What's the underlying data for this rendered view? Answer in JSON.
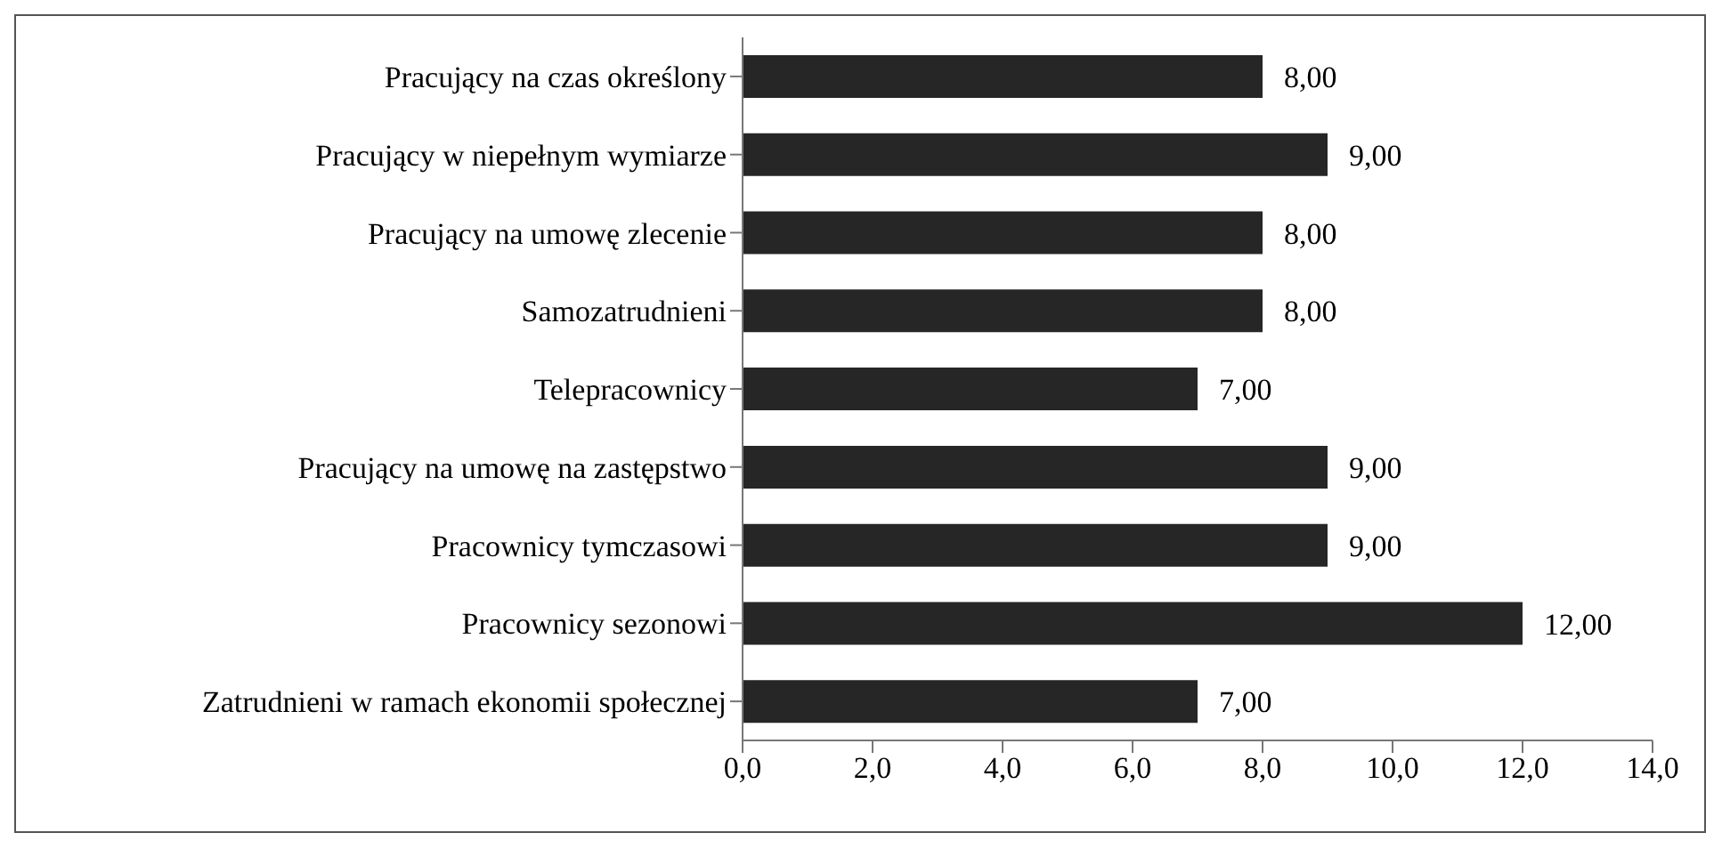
{
  "chart_data": {
    "type": "bar",
    "orientation": "horizontal",
    "categories": [
      "Pracujący na czas określony",
      "Pracujący w niepełnym wymiarze",
      "Pracujący na umowę zlecenie",
      "Samozatrudnieni",
      "Telepracownicy",
      "Pracujący na umowę na zastępstwo",
      "Pracownicy tymczasowi",
      "Pracownicy sezonowi",
      "Zatrudnieni w ramach ekonomii społecznej"
    ],
    "values": [
      8,
      9,
      8,
      8,
      7,
      9,
      9,
      12,
      7
    ],
    "value_labels": [
      "8,00",
      "9,00",
      "8,00",
      "8,00",
      "7,00",
      "9,00",
      "9,00",
      "12,00",
      "7,00"
    ],
    "color": "#262626",
    "xlim": [
      0,
      14
    ],
    "xticks": [
      {
        "value": 0,
        "label": "0,0"
      },
      {
        "value": 2,
        "label": "2,0"
      },
      {
        "value": 4,
        "label": "4,0"
      },
      {
        "value": 6,
        "label": "6,0"
      },
      {
        "value": 8,
        "label": "8,0"
      },
      {
        "value": 10,
        "label": "10,0"
      },
      {
        "value": 12,
        "label": "12,0"
      },
      {
        "value": 14,
        "label": "14,0"
      }
    ],
    "grid": false,
    "legend": false
  }
}
